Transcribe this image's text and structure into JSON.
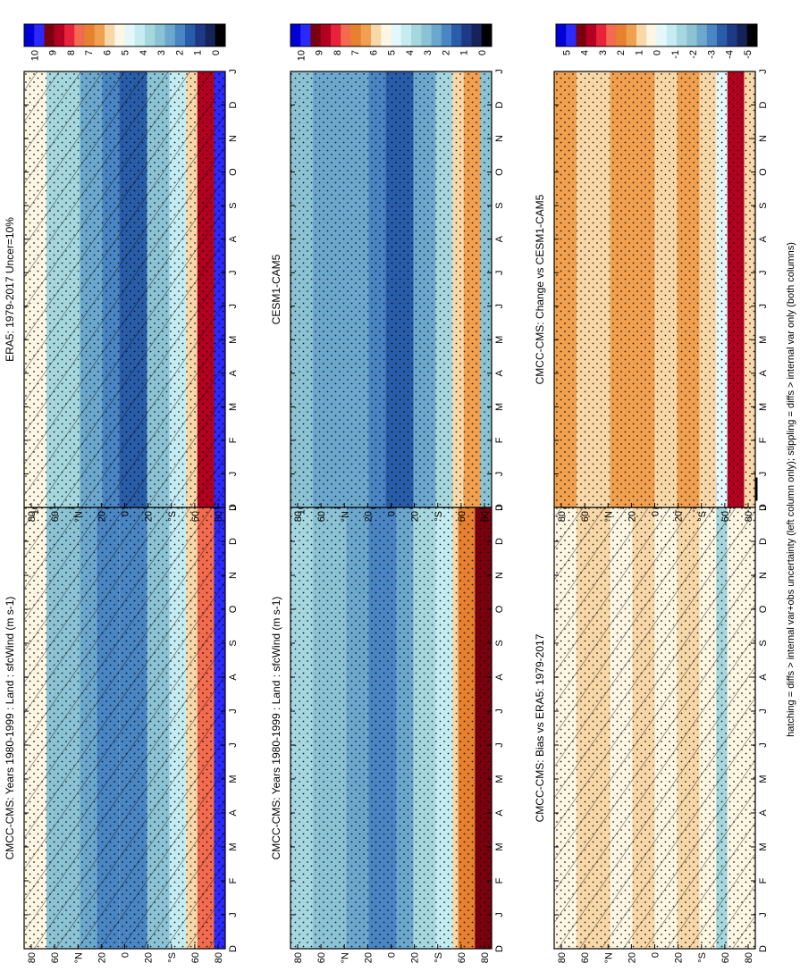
{
  "figure": {
    "footnote": "hatching = diffs > internal var+obs uncertainty (left column only); stippling = diffs > internal var only (both columns)",
    "lat_ticks": [
      "80",
      "60",
      "°N",
      "20",
      "0",
      "20",
      "°S",
      "60",
      "80"
    ],
    "month_ticks": [
      "D",
      "J",
      "F",
      "M",
      "A",
      "M",
      "J",
      "J",
      "A",
      "S",
      "O",
      "N",
      "D",
      "J"
    ],
    "colorbar_abs_ticks": [
      "10",
      "9",
      "8",
      "7",
      "6",
      "5",
      "4",
      "3",
      "2",
      "1",
      "0"
    ],
    "colorbar_diff_ticks": [
      "5",
      "4",
      "3",
      "2",
      "1",
      "0",
      "-1",
      "-2",
      "-3",
      "-4",
      "-5"
    ],
    "colors_abs": [
      "#0000d6",
      "#2a2aff",
      "#7a0010",
      "#b40020",
      "#e8223a",
      "#f36b4f",
      "#e6812f",
      "#f0a04e",
      "#f8d8a8",
      "#fdf6e3",
      "#e4f7fb",
      "#c4ecf1",
      "#a6d7df",
      "#8cc3d4",
      "#6ca8cd",
      "#4a86c4",
      "#2a5da9",
      "#1e3a86",
      "#14245a",
      "#000000"
    ],
    "colors_diff": [
      "#0000d6",
      "#2a2aff",
      "#7a0010",
      "#b40020",
      "#e8223a",
      "#f36b4f",
      "#e6812f",
      "#f0a04e",
      "#f8d8a8",
      "#fdf6e3",
      "#e4f7fb",
      "#c4ecf1",
      "#a6d7df",
      "#8cc3d4",
      "#6ca8cd",
      "#4a86c4",
      "#2a5da9",
      "#1e3a86",
      "#14245a",
      "#000000"
    ]
  },
  "chart_data": [
    {
      "id": "p1",
      "type": "heatmap",
      "title": "CMCC-CMS: Years 1980-1999 : Land : sfcWind (m s-1)",
      "x": "month",
      "y": "latitude",
      "months": [
        "D",
        "J",
        "F",
        "M",
        "A",
        "M",
        "J",
        "J",
        "A",
        "S",
        "O",
        "N",
        "D",
        "J"
      ],
      "lat_bands": [
        {
          "from": 90,
          "to": 70,
          "value": 5.3
        },
        {
          "from": 70,
          "to": 40,
          "value": 3.5
        },
        {
          "from": 40,
          "to": 25,
          "value": 3.0
        },
        {
          "from": 25,
          "to": 5,
          "value": 2.5
        },
        {
          "from": 5,
          "to": -20,
          "value": 2.2
        },
        {
          "from": -20,
          "to": -40,
          "value": 3.2
        },
        {
          "from": -40,
          "to": -55,
          "value": 4.5
        },
        {
          "from": -55,
          "to": -65,
          "value": 5.6
        },
        {
          "from": -65,
          "to": -80,
          "value": 7.5
        },
        {
          "from": -80,
          "to": -90,
          "value": 9.5
        }
      ],
      "hatched": true,
      "stippled": true,
      "colorbar": "abs"
    },
    {
      "id": "p2",
      "type": "heatmap",
      "title": "CMCC-CMS: Years 1980-1999 : Land : sfcWind (m s-1)",
      "x": "month",
      "y": "latitude",
      "months": [
        "D",
        "J",
        "F",
        "M",
        "A",
        "M",
        "J",
        "J",
        "A",
        "S",
        "O",
        "N",
        "D",
        "J"
      ],
      "lat_bands": [
        {
          "from": 90,
          "to": 70,
          "value": 3.8
        },
        {
          "from": 70,
          "to": 40,
          "value": 3.3
        },
        {
          "from": 40,
          "to": 20,
          "value": 3.0
        },
        {
          "from": 20,
          "to": -5,
          "value": 2.5
        },
        {
          "from": -5,
          "to": -20,
          "value": 3.0
        },
        {
          "from": -20,
          "to": -40,
          "value": 3.8
        },
        {
          "from": -40,
          "to": -55,
          "value": 4.3
        },
        {
          "from": -55,
          "to": -60,
          "value": 5.6
        },
        {
          "from": -60,
          "to": -75,
          "value": 7.0
        },
        {
          "from": -75,
          "to": -90,
          "value": 9.0
        }
      ],
      "hatched": false,
      "stippled": true,
      "colorbar": "abs"
    },
    {
      "id": "p3",
      "type": "heatmap",
      "title": "ERA5: 1979-2017 Uncer=10%",
      "x": "month",
      "y": "latitude",
      "months": [
        "D",
        "J",
        "F",
        "M",
        "A",
        "M",
        "J",
        "J",
        "A",
        "S",
        "O",
        "N",
        "D",
        "J"
      ],
      "lat_bands": [
        {
          "from": 90,
          "to": 70,
          "value": 5.2
        },
        {
          "from": 70,
          "to": 40,
          "value": 3.6
        },
        {
          "from": 40,
          "to": 20,
          "value": 3.0
        },
        {
          "from": 20,
          "to": 5,
          "value": 2.2
        },
        {
          "from": 5,
          "to": -20,
          "value": 1.8
        },
        {
          "from": -20,
          "to": -40,
          "value": 3.3
        },
        {
          "from": -40,
          "to": -55,
          "value": 4.5
        },
        {
          "from": -55,
          "to": -65,
          "value": 6.0
        },
        {
          "from": -65,
          "to": -80,
          "value": 8.5
        },
        {
          "from": -80,
          "to": -90,
          "value": 9.5
        }
      ],
      "hatched": true,
      "stippled": true,
      "colorbar": "abs"
    },
    {
      "id": "p4",
      "type": "heatmap",
      "title": "CESM1-CAM5",
      "x": "month",
      "y": "latitude",
      "months": [
        "D",
        "J",
        "F",
        "M",
        "A",
        "M",
        "J",
        "J",
        "A",
        "S",
        "O",
        "N",
        "D",
        "J"
      ],
      "lat_bands": [
        {
          "from": 90,
          "to": 70,
          "value": 3.2
        },
        {
          "from": 70,
          "to": 40,
          "value": 3.0
        },
        {
          "from": 40,
          "to": 20,
          "value": 2.6
        },
        {
          "from": 20,
          "to": 5,
          "value": 2.2
        },
        {
          "from": 5,
          "to": -20,
          "value": 1.8
        },
        {
          "from": -20,
          "to": -40,
          "value": 2.8
        },
        {
          "from": -40,
          "to": -55,
          "value": 3.6
        },
        {
          "from": -55,
          "to": -65,
          "value": 5.6
        },
        {
          "from": -65,
          "to": -80,
          "value": 6.2
        },
        {
          "from": -80,
          "to": -90,
          "value": 3.5
        }
      ],
      "hatched": false,
      "stippled": true,
      "colorbar": "abs"
    },
    {
      "id": "p5",
      "type": "heatmap",
      "title": "CMCC-CMS: Bias vs ERA5: 1979-2017",
      "x": "month",
      "y": "latitude",
      "months": [
        "D",
        "J",
        "F",
        "M",
        "A",
        "M",
        "J",
        "J",
        "A",
        "S",
        "O",
        "N",
        "D",
        "J"
      ],
      "lat_bands": [
        {
          "from": 90,
          "to": 70,
          "value": 0.3
        },
        {
          "from": 70,
          "to": 40,
          "value": 0.6
        },
        {
          "from": 40,
          "to": 20,
          "value": 0.3
        },
        {
          "from": 20,
          "to": 0,
          "value": 0.6
        },
        {
          "from": 0,
          "to": -20,
          "value": 0.4
        },
        {
          "from": -20,
          "to": -40,
          "value": 0.7
        },
        {
          "from": -40,
          "to": -55,
          "value": 0.5
        },
        {
          "from": -55,
          "to": -65,
          "value": -1.2
        },
        {
          "from": -65,
          "to": -80,
          "value": 0.3
        },
        {
          "from": -80,
          "to": -90,
          "value": 0.1
        }
      ],
      "hatched": true,
      "stippled": true,
      "colorbar": "diff"
    },
    {
      "id": "p6",
      "type": "heatmap",
      "title": "CMCC-CMS: Change vs CESM1-CAM5",
      "x": "month",
      "y": "latitude",
      "months": [
        "D",
        "J",
        "F",
        "M",
        "A",
        "M",
        "J",
        "J",
        "A",
        "S",
        "O",
        "N",
        "D",
        "J"
      ],
      "lat_bands": [
        {
          "from": 90,
          "to": 70,
          "value": 1.2
        },
        {
          "from": 70,
          "to": 40,
          "value": 1.0
        },
        {
          "from": 40,
          "to": 20,
          "value": 1.1
        },
        {
          "from": 20,
          "to": 0,
          "value": 1.2
        },
        {
          "from": 0,
          "to": -20,
          "value": 1.0
        },
        {
          "from": -20,
          "to": -40,
          "value": 1.1
        },
        {
          "from": -40,
          "to": -55,
          "value": 1.0
        },
        {
          "from": -55,
          "to": -65,
          "value": 0.0
        },
        {
          "from": -65,
          "to": -80,
          "value": 3.2
        },
        {
          "from": -80,
          "to": -90,
          "value": 1.0
        }
      ],
      "hatched": false,
      "stippled": true,
      "colorbar": "diff"
    }
  ]
}
